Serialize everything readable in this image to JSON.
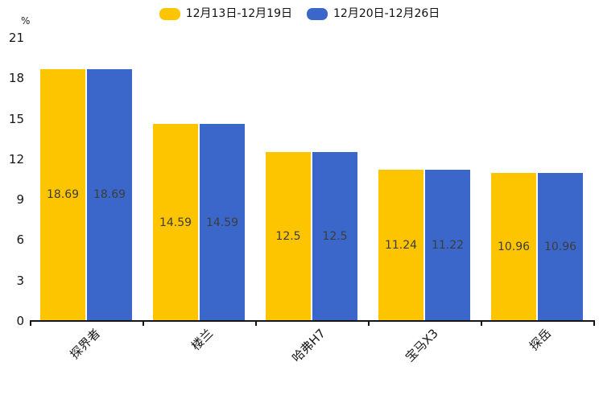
{
  "chart_data": {
    "type": "bar",
    "unit_label": "%",
    "categories": [
      "探界者",
      "楼兰",
      "哈弗H7",
      "宝马X3",
      "探岳"
    ],
    "series": [
      {
        "name": "12月13日-12月19日",
        "color": "#fdc400",
        "values": [
          18.69,
          14.59,
          12.5,
          11.24,
          10.96
        ]
      },
      {
        "name": "12月20日-12月26日",
        "color": "#3a67c9",
        "values": [
          18.69,
          14.59,
          12.5,
          11.22,
          10.96
        ]
      }
    ],
    "ylim": [
      0,
      21
    ],
    "yticks": [
      0,
      3,
      6,
      9,
      12,
      15,
      18,
      21
    ],
    "grid": false,
    "legend_position": "top",
    "value_labels_shown": true,
    "colors": {
      "axis": "#151515",
      "tick_text": "#161616",
      "value_text": "#3d3d3d",
      "background": "#ffffff"
    }
  }
}
